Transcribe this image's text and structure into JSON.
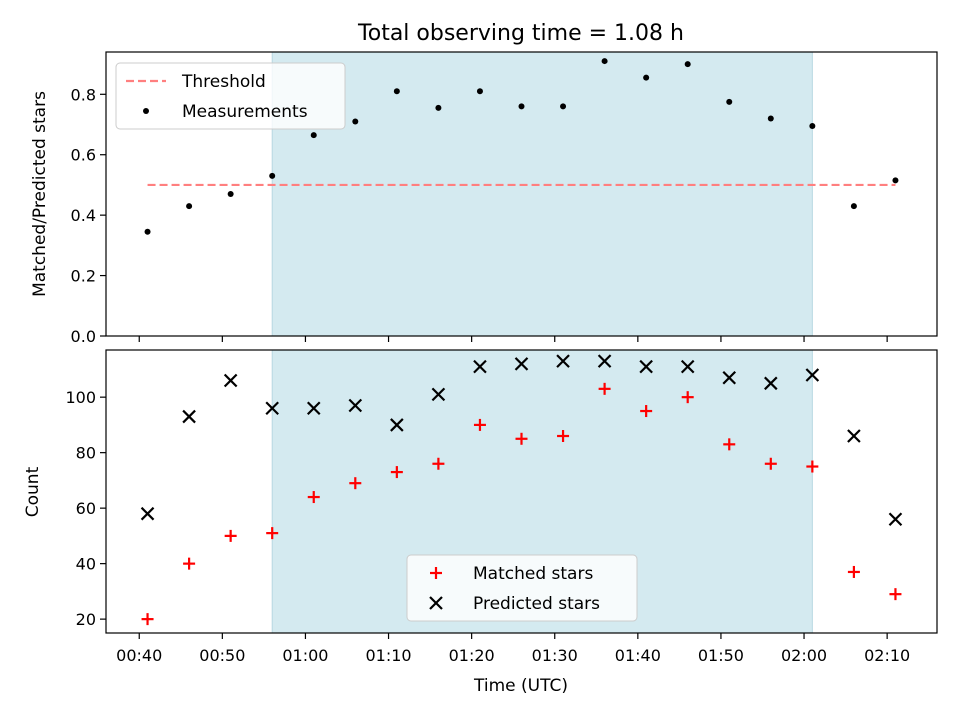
{
  "chart_data": [
    {
      "type": "scatter",
      "title": "Total observing time = 1.08 h",
      "xlabel": "",
      "ylabel": "Matched/Predicted stars",
      "ylim": [
        0.0,
        0.94
      ],
      "yticks": [
        "0.0",
        "0.2",
        "0.4",
        "0.6",
        "0.8"
      ],
      "shaded_x_range": [
        "00:56",
        "02:01"
      ],
      "shade_color": "#d4eaf0",
      "legend": {
        "position": "top-left",
        "entries": [
          "Threshold",
          "Measurements"
        ]
      },
      "series": [
        {
          "name": "Threshold",
          "style": "dashed-line",
          "color": "#ff7f7f",
          "x": [
            "00:41",
            "02:11"
          ],
          "y": [
            0.5,
            0.5
          ]
        },
        {
          "name": "Measurements",
          "style": "dot",
          "color": "#000000",
          "x": [
            "00:41",
            "00:46",
            "00:51",
            "00:56",
            "01:01",
            "01:06",
            "01:11",
            "01:16",
            "01:21",
            "01:26",
            "01:31",
            "01:36",
            "01:41",
            "01:46",
            "01:51",
            "01:56",
            "02:01",
            "02:06",
            "02:11"
          ],
          "y": [
            0.345,
            0.43,
            0.47,
            0.53,
            0.665,
            0.71,
            0.81,
            0.755,
            0.81,
            0.76,
            0.76,
            0.91,
            0.855,
            0.9,
            0.775,
            0.72,
            0.695,
            0.43,
            0.515
          ]
        }
      ]
    },
    {
      "type": "scatter",
      "title": "",
      "xlabel": "Time (UTC)",
      "ylabel": "Count",
      "ylim": [
        15,
        117
      ],
      "yticks": [
        "20",
        "40",
        "60",
        "80",
        "100"
      ],
      "xlim": [
        "00:36",
        "02:16"
      ],
      "xticks": [
        "00:40",
        "00:50",
        "01:00",
        "01:10",
        "01:20",
        "01:30",
        "01:40",
        "01:50",
        "02:00",
        "02:10"
      ],
      "shaded_x_range": [
        "00:56",
        "02:01"
      ],
      "shade_color": "#d4eaf0",
      "legend": {
        "position": "bottom-center",
        "entries": [
          "Matched stars",
          "Predicted stars"
        ]
      },
      "series": [
        {
          "name": "Matched stars",
          "marker": "plus",
          "color": "#ff0000",
          "x": [
            "00:41",
            "00:46",
            "00:51",
            "00:56",
            "01:01",
            "01:06",
            "01:11",
            "01:16",
            "01:21",
            "01:26",
            "01:31",
            "01:36",
            "01:41",
            "01:46",
            "01:51",
            "01:56",
            "02:01",
            "02:06",
            "02:11"
          ],
          "y": [
            20,
            40,
            50,
            51,
            64,
            69,
            73,
            76,
            90,
            85,
            86,
            103,
            95,
            100,
            83,
            76,
            75,
            37,
            29
          ]
        },
        {
          "name": "Predicted stars",
          "marker": "x",
          "color": "#000000",
          "x": [
            "00:41",
            "00:46",
            "00:51",
            "00:56",
            "01:01",
            "01:06",
            "01:11",
            "01:16",
            "01:21",
            "01:26",
            "01:31",
            "01:36",
            "01:41",
            "01:46",
            "01:51",
            "01:56",
            "02:01",
            "02:06",
            "02:11"
          ],
          "y": [
            58,
            93,
            106,
            96,
            96,
            97,
            90,
            101,
            111,
            112,
            113,
            113,
            111,
            111,
            107,
            105,
            108,
            86,
            56
          ]
        }
      ]
    }
  ]
}
